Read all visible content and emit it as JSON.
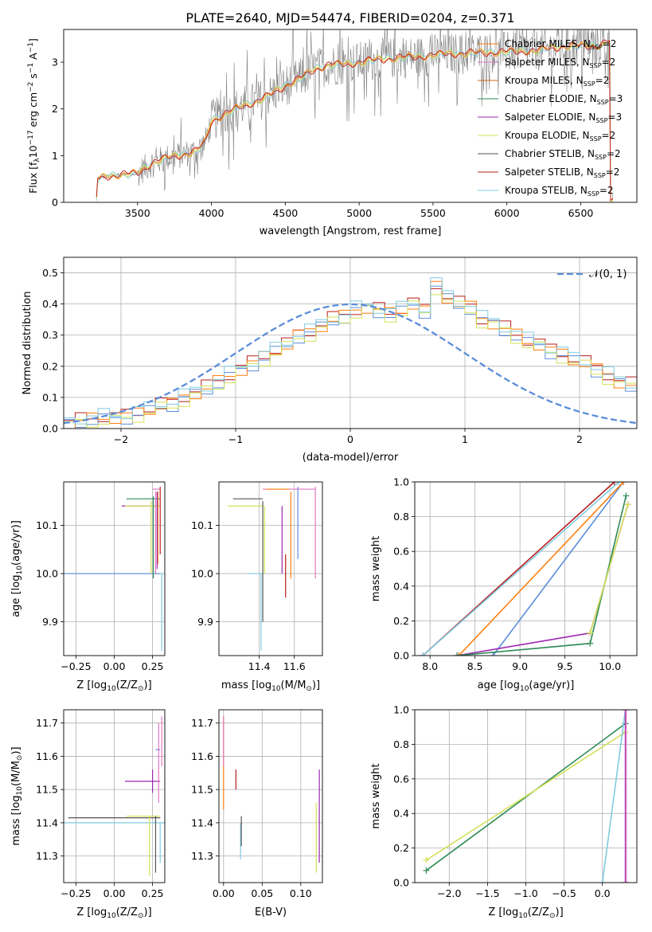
{
  "figure": {
    "title": "PLATE=2640, MJD=54474, FIBERID=0204, z=0.371"
  },
  "colors": {
    "chabrier_miles": "#ff7f0e",
    "salpeter_miles": "#e377c2",
    "kroupa_miles": "#d2691e",
    "chabrier_elodie": "#2e8b57",
    "salpeter_elodie": "#9c27b0",
    "kroupa_elodie": "#d4e157",
    "chabrier_stelib": "#555555",
    "salpeter_stelib": "#b71c1c",
    "kroupa_stelib": "#80cbe0",
    "normal": "#5b8dd9",
    "data": "#808080",
    "grid": "#b0b0b0"
  },
  "chart_data": [
    {
      "id": "spectrum",
      "type": "line",
      "title": "PLATE=2640, MJD=54474, FIBERID=0204, z=0.371",
      "xlabel": "wavelength [Angstrom, rest frame]",
      "ylabel_main": "Flux [f",
      "ylabel_sub": "λ",
      "ylabel_rest": "10",
      "ylabel_exp": "−17",
      "ylabel_units": " erg cm",
      "ylabel_exp2": "−2",
      "ylabel_s": " s",
      "ylabel_exp3": "−1",
      "ylabel_end": " A",
      "ylabel_exp4": "−1",
      "ylabel_close": "]",
      "xlim": [
        3000,
        6880
      ],
      "ylim": [
        0,
        3.7
      ],
      "xticks": [
        3500,
        4000,
        4500,
        5000,
        5500,
        6000,
        6500
      ],
      "yticks": [
        0,
        1,
        2,
        3
      ],
      "grid": false,
      "legend_placement": "top-right",
      "continuum": [
        [
          3220,
          0
        ],
        [
          3230,
          0.5
        ],
        [
          3300,
          0.56
        ],
        [
          3400,
          0.6
        ],
        [
          3500,
          0.62
        ],
        [
          3600,
          0.85
        ],
        [
          3700,
          0.95
        ],
        [
          3800,
          1.02
        ],
        [
          3900,
          1.1
        ],
        [
          3960,
          1.3
        ],
        [
          4000,
          1.75
        ],
        [
          4100,
          1.9
        ],
        [
          4200,
          2.05
        ],
        [
          4300,
          2.15
        ],
        [
          4400,
          2.3
        ],
        [
          4500,
          2.5
        ],
        [
          4600,
          2.65
        ],
        [
          4700,
          2.85
        ],
        [
          4800,
          2.95
        ],
        [
          4900,
          2.95
        ],
        [
          5000,
          3.0
        ],
        [
          5200,
          3.08
        ],
        [
          5400,
          3.12
        ],
        [
          5600,
          3.18
        ],
        [
          5800,
          3.2
        ],
        [
          6000,
          3.22
        ],
        [
          6200,
          3.25
        ],
        [
          6400,
          3.35
        ],
        [
          6600,
          3.35
        ],
        [
          6700,
          3.45
        ]
      ],
      "legend": [
        {
          "name": "Chabrier MILES, N",
          "sub": "SSP",
          "tail": "=2",
          "color_key": "chabrier_miles"
        },
        {
          "name": "Salpeter MILES, N",
          "sub": "SSP",
          "tail": "=2",
          "color_key": "salpeter_miles"
        },
        {
          "name": "Kroupa MILES, N",
          "sub": "SSP",
          "tail": "=2",
          "color_key": "kroupa_miles"
        },
        {
          "name": "Chabrier ELODIE, N",
          "sub": "SSP",
          "tail": "=3",
          "color_key": "chabrier_elodie"
        },
        {
          "name": "Salpeter ELODIE, N",
          "sub": "SSP",
          "tail": "=3",
          "color_key": "salpeter_elodie"
        },
        {
          "name": "Kroupa ELODIE, N",
          "sub": "SSP",
          "tail": "=2",
          "color_key": "kroupa_elodie"
        },
        {
          "name": "Chabrier STELIB, N",
          "sub": "SSP",
          "tail": "=2",
          "color_key": "chabrier_stelib"
        },
        {
          "name": "Salpeter STELIB, N",
          "sub": "SSP",
          "tail": "=2",
          "color_key": "salpeter_stelib"
        },
        {
          "name": "Kroupa STELIB, N",
          "sub": "SSP",
          "tail": "=2",
          "color_key": "kroupa_stelib"
        }
      ]
    },
    {
      "id": "residuals",
      "type": "bar",
      "xlabel": "(data-model)/error",
      "ylabel": "Normed distribution",
      "xlim": [
        -2.5,
        2.5
      ],
      "ylim": [
        0,
        0.55
      ],
      "xticks": [
        -2,
        -1,
        0,
        1,
        2
      ],
      "xticklabels": [
        "−2",
        "−1",
        "0",
        "1",
        "2"
      ],
      "yticks": [
        0,
        0.1,
        0.2,
        0.3,
        0.4,
        0.5
      ],
      "yticklabels": [
        "0.0",
        "0.1",
        "0.2",
        "0.3",
        "0.4",
        "0.5"
      ],
      "grid": true,
      "legend_placement": "top-right",
      "legend_label": "𝒩(0, 1)",
      "bin_edges_start": -2.5,
      "bin_width": 0.1,
      "base_values": [
        0.02,
        0.025,
        0.03,
        0.035,
        0.035,
        0.04,
        0.05,
        0.06,
        0.075,
        0.08,
        0.1,
        0.115,
        0.13,
        0.15,
        0.17,
        0.19,
        0.21,
        0.23,
        0.25,
        0.27,
        0.3,
        0.31,
        0.33,
        0.35,
        0.36,
        0.38,
        0.39,
        0.38,
        0.37,
        0.38,
        0.4,
        0.38,
        0.46,
        0.42,
        0.4,
        0.39,
        0.35,
        0.34,
        0.32,
        0.3,
        0.28,
        0.27,
        0.25,
        0.24,
        0.22,
        0.21,
        0.19,
        0.17,
        0.15,
        0.14,
        0.14,
        0.13,
        0.12,
        0.11,
        0.1,
        0.09,
        0.07,
        0.06,
        0.05,
        0.04
      ],
      "series": [
        {
          "color_key": "salpeter_stelib",
          "offset": 0.006
        },
        {
          "color_key": "normal",
          "offset": -0.006
        },
        {
          "color_key": "chabrier_miles",
          "offset": 0.0
        },
        {
          "color_key": "kroupa_elodie",
          "offset": -0.01
        },
        {
          "color_key": "kroupa_stelib",
          "offset": 0.01
        }
      ],
      "normal_curve": {
        "mean": 0,
        "sigma": 1
      }
    },
    {
      "id": "age-vs-Z",
      "type": "scatter",
      "xlabel_main": "Z [log",
      "xlabel_sub": "10",
      "xlabel_rest": "(Z/Z",
      "xlabel_sun": "⊙",
      "xlabel_end": ")]",
      "ylabel_main": "age  [log",
      "ylabel_sub": "10",
      "ylabel_rest": "(age/yr)]",
      "xlim": [
        -0.33,
        0.33
      ],
      "ylim": [
        9.83,
        10.19
      ],
      "xticks": [
        -0.25,
        0.0,
        0.25
      ],
      "xticklabels": [
        "−0.25",
        "0.00",
        "0.25"
      ],
      "yticks": [
        9.9,
        10.0,
        10.1
      ],
      "yticklabels": [
        "9.9",
        "10.0",
        "10.1"
      ],
      "grid": true
    },
    {
      "id": "age-vs-mass",
      "type": "scatter",
      "xlabel_main": "mass [log",
      "xlabel_sub": "10",
      "xlabel_rest": "(M/M",
      "xlabel_sun": "⊙",
      "xlabel_end": ")]",
      "xlim": [
        11.17,
        11.76
      ],
      "ylim": [
        9.83,
        10.19
      ],
      "xticks": [
        11.4,
        11.6
      ],
      "xticklabels": [
        "11.4",
        "11.6"
      ],
      "yticks": [
        9.9,
        10.0,
        10.1
      ],
      "yticklabels": [
        "9.9",
        "10.0",
        "10.1"
      ],
      "grid": true
    },
    {
      "id": "weight-vs-age",
      "type": "line",
      "xlabel_main": "age  [log",
      "xlabel_sub": "10",
      "xlabel_rest": "(age/yr)]",
      "ylabel": "mass weight",
      "xlim": [
        7.83,
        10.3
      ],
      "ylim": [
        0,
        1
      ],
      "xticks": [
        8.0,
        8.5,
        9.0,
        9.5,
        10.0
      ],
      "xticklabels": [
        "8.0",
        "8.5",
        "9.0",
        "9.5",
        "10.0"
      ],
      "yticks": [
        0,
        0.2,
        0.4,
        0.6,
        0.8,
        1.0
      ],
      "yticklabels": [
        "0.0",
        "0.2",
        "0.4",
        "0.6",
        "0.8",
        "1.0"
      ],
      "grid": true,
      "series": [
        {
          "color_key": "normal",
          "x": [
            8.7,
            10.15
          ],
          "y": [
            0,
            1
          ]
        },
        {
          "color_key": "chabrier_miles",
          "x": [
            8.32,
            10.15
          ],
          "y": [
            0,
            1
          ]
        },
        {
          "color_key": "salpeter_stelib",
          "x": [
            7.92,
            10.05
          ],
          "y": [
            0,
            1
          ]
        },
        {
          "color_key": "kroupa_stelib",
          "x": [
            7.92,
            10.1
          ],
          "y": [
            0,
            1
          ]
        },
        {
          "color_key": "salpeter_elodie",
          "x": [
            8.3,
            9.78,
            10.2
          ],
          "y": [
            0,
            0.13,
            0.87
          ]
        },
        {
          "color_key": "chabrier_elodie",
          "x": [
            8.3,
            9.78,
            10.18
          ],
          "y": [
            0,
            0.07,
            0.92
          ]
        },
        {
          "color_key": "kroupa_elodie",
          "x": [
            9.78,
            10.2
          ],
          "y": [
            0.13,
            0.87
          ]
        }
      ]
    },
    {
      "id": "mass-vs-Z",
      "type": "scatter",
      "xlabel_main": "Z [log",
      "xlabel_sub": "10",
      "xlabel_rest": "(Z/Z",
      "xlabel_sun": "⊙",
      "xlabel_end": ")]",
      "ylabel_main": "mass [log",
      "ylabel_sub": "10",
      "ylabel_rest": "(M/M",
      "ylabel_sun": "⊙",
      "ylabel_end": ")]",
      "xlim": [
        -0.33,
        0.33
      ],
      "ylim": [
        11.22,
        11.74
      ],
      "xticks": [
        -0.25,
        0.0,
        0.25
      ],
      "xticklabels": [
        "−0.25",
        "0.00",
        "0.25"
      ],
      "yticks": [
        11.3,
        11.4,
        11.5,
        11.6,
        11.7
      ],
      "yticklabels": [
        "11.3",
        "11.4",
        "11.5",
        "11.6",
        "11.7"
      ],
      "grid": true
    },
    {
      "id": "mass-vs-ebv",
      "type": "scatter",
      "xlabel": "E(B-V)",
      "xlim": [
        -0.006,
        0.128
      ],
      "ylim": [
        11.22,
        11.74
      ],
      "xticks": [
        0.0,
        0.05,
        0.1
      ],
      "xticklabels": [
        "0.00",
        "0.05",
        "0.10"
      ],
      "yticks": [
        11.3,
        11.4,
        11.5,
        11.6,
        11.7
      ],
      "yticklabels": [
        "11.3",
        "11.4",
        "11.5",
        "11.6",
        "11.7"
      ],
      "grid": true
    },
    {
      "id": "weight-vs-Z",
      "type": "line",
      "xlabel_main": "Z [log",
      "xlabel_sub": "10",
      "xlabel_rest": "(Z/Z",
      "xlabel_sun": "⊙",
      "xlabel_end": ")]",
      "ylabel": "mass weight",
      "xlim": [
        -2.45,
        0.45
      ],
      "ylim": [
        0,
        1
      ],
      "xticks": [
        -2.0,
        -1.5,
        -1.0,
        -0.5,
        0.0
      ],
      "xticklabels": [
        "−2.0",
        "−1.5",
        "−1.0",
        "−0.5",
        "0.0"
      ],
      "yticks": [
        0,
        0.2,
        0.4,
        0.6,
        0.8,
        1.0
      ],
      "yticklabels": [
        "0.0",
        "0.2",
        "0.4",
        "0.6",
        "0.8",
        "1.0"
      ],
      "grid": true,
      "series": [
        {
          "color_key": "chabrier_elodie",
          "x": [
            -2.3,
            0.3
          ],
          "y": [
            0.07,
            0.92
          ]
        },
        {
          "color_key": "kroupa_elodie",
          "x": [
            -2.3,
            0.3
          ],
          "y": [
            0.13,
            0.87
          ]
        },
        {
          "color_key": "kroupa_stelib",
          "x": [
            0.0,
            0.3
          ],
          "y": [
            0,
            1
          ]
        },
        {
          "color_key": "salpeter_elodie",
          "x": [
            0.3,
            0.3
          ],
          "y": [
            0,
            1
          ]
        },
        {
          "color_key": "salpeter_miles",
          "x": [
            0.31,
            0.31
          ],
          "y": [
            0,
            1
          ]
        }
      ]
    }
  ]
}
